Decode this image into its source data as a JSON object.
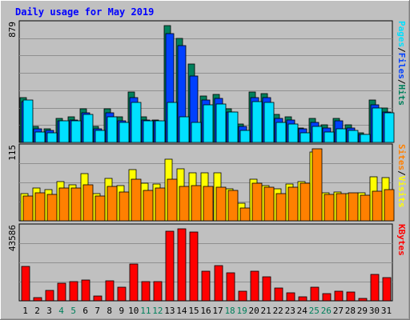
{
  "title": "Daily usage for May 2019",
  "colors": {
    "hits": "#00805c",
    "files": "#0040ff",
    "pages": "#00e0ff",
    "visits": "#ffff00",
    "sites": "#ff8000",
    "kbytes": "#ff0000",
    "title": "#0000ff",
    "weekend": "#00805c",
    "weekday": "#000000"
  },
  "chart_data": [
    {
      "type": "bar",
      "panel": "hits-files-pages",
      "y_max_label": "879",
      "ylim": [
        0,
        879
      ],
      "right_labels": [
        {
          "text": "Hits",
          "color_key": "hits"
        },
        {
          "text": "Files",
          "color_key": "files"
        },
        {
          "text": "Pages",
          "color_key": "pages"
        }
      ],
      "separator": "/",
      "categories": [
        "1",
        "2",
        "3",
        "4",
        "5",
        "6",
        "7",
        "8",
        "9",
        "10",
        "11",
        "12",
        "13",
        "14",
        "15",
        "16",
        "17",
        "18",
        "19",
        "20",
        "21",
        "22",
        "23",
        "24",
        "25",
        "26",
        "27",
        "28",
        "29",
        "30",
        "31"
      ],
      "series": [
        {
          "name": "Hits",
          "values": [
            340,
            120,
            100,
            180,
            190,
            250,
            120,
            250,
            190,
            380,
            190,
            170,
            880,
            780,
            590,
            350,
            360,
            250,
            140,
            380,
            370,
            210,
            190,
            110,
            180,
            130,
            180,
            130,
            70,
            320,
            260
          ]
        },
        {
          "name": "Files",
          "values": [
            310,
            100,
            90,
            160,
            170,
            220,
            100,
            220,
            160,
            340,
            170,
            160,
            820,
            730,
            500,
            320,
            330,
            230,
            120,
            340,
            340,
            180,
            170,
            100,
            150,
            110,
            160,
            110,
            60,
            280,
            230
          ]
        },
        {
          "name": "Pages",
          "values": [
            320,
            80,
            70,
            160,
            160,
            210,
            90,
            190,
            150,
            300,
            160,
            160,
            300,
            190,
            150,
            280,
            290,
            230,
            90,
            310,
            300,
            150,
            140,
            70,
            120,
            80,
            100,
            90,
            60,
            260,
            220
          ]
        }
      ]
    },
    {
      "type": "bar",
      "panel": "visits-sites",
      "y_max_label": "115",
      "ylim": [
        0,
        115
      ],
      "right_labels": [
        {
          "text": "Visits",
          "color_key": "visits"
        },
        {
          "text": "Sites",
          "color_key": "sites"
        }
      ],
      "separator": "/",
      "categories": [
        "1",
        "2",
        "3",
        "4",
        "5",
        "6",
        "7",
        "8",
        "9",
        "10",
        "11",
        "12",
        "13",
        "14",
        "15",
        "16",
        "17",
        "18",
        "19",
        "20",
        "21",
        "22",
        "23",
        "24",
        "25",
        "26",
        "27",
        "28",
        "29",
        "30",
        "31"
      ],
      "series": [
        {
          "name": "Visits",
          "values": [
            44,
            52,
            50,
            62,
            58,
            75,
            44,
            68,
            56,
            82,
            60,
            59,
            99,
            83,
            77,
            77,
            77,
            51,
            28,
            66,
            56,
            51,
            59,
            62,
            110,
            45,
            46,
            43,
            45,
            70,
            69
          ]
        },
        {
          "name": "Sites",
          "values": [
            39,
            45,
            42,
            52,
            52,
            58,
            40,
            55,
            46,
            66,
            48,
            52,
            66,
            55,
            56,
            55,
            54,
            48,
            20,
            60,
            54,
            44,
            54,
            60,
            115,
            42,
            44,
            45,
            41,
            47,
            50
          ]
        }
      ]
    },
    {
      "type": "bar",
      "panel": "kbytes",
      "y_max_label": "43586",
      "ylim": [
        0,
        43586
      ],
      "right_labels": [
        {
          "text": "KBytes",
          "color_key": "kbytes"
        }
      ],
      "separator": "",
      "categories": [
        "1",
        "2",
        "3",
        "4",
        "5",
        "6",
        "7",
        "8",
        "9",
        "10",
        "11",
        "12",
        "13",
        "14",
        "15",
        "16",
        "17",
        "18",
        "19",
        "20",
        "21",
        "22",
        "23",
        "24",
        "25",
        "26",
        "27",
        "28",
        "29",
        "30",
        "31"
      ],
      "series": [
        {
          "name": "KBytes",
          "values": [
            21000,
            2000,
            6500,
            10500,
            11500,
            12700,
            2700,
            12000,
            8000,
            22500,
            11500,
            11500,
            42000,
            43500,
            41500,
            17700,
            21400,
            17000,
            6000,
            18000,
            14500,
            7600,
            5000,
            2200,
            8300,
            4200,
            6000,
            5500,
            1400,
            16000,
            14000
          ]
        }
      ]
    }
  ],
  "x_axis": {
    "labels": [
      "1",
      "2",
      "3",
      "4",
      "5",
      "6",
      "7",
      "8",
      "9",
      "10",
      "11",
      "12",
      "13",
      "14",
      "15",
      "16",
      "17",
      "18",
      "19",
      "20",
      "21",
      "22",
      "23",
      "24",
      "25",
      "26",
      "27",
      "28",
      "29",
      "30",
      "31"
    ],
    "weekend": [
      4,
      5,
      11,
      12,
      18,
      19,
      25,
      26
    ]
  }
}
